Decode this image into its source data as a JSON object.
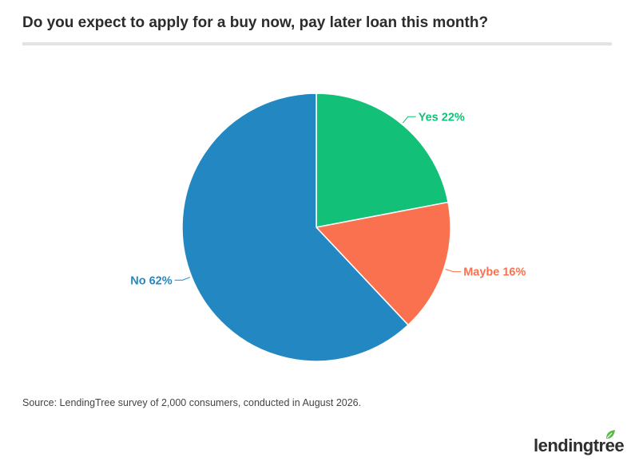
{
  "title": "Do you expect to apply for a buy now, pay later loan this month?",
  "source": "Source: LendingTree survey of 2,000 consumers, conducted in August 2026.",
  "logo": {
    "text": "lendingtree",
    "icon": "leaf-icon",
    "color": "#5ab947"
  },
  "chart_data": {
    "type": "pie",
    "categories": [
      "Yes",
      "Maybe",
      "No"
    ],
    "values": [
      22,
      16,
      62
    ],
    "unit": "%",
    "colors": [
      "#12c077",
      "#f9714e",
      "#2388c1"
    ],
    "start_angle": "12 o'clock",
    "direction": "clockwise",
    "labels": [
      "Yes 22%",
      "Maybe 16%",
      "No 62%"
    ],
    "legend": "none",
    "title": ""
  }
}
